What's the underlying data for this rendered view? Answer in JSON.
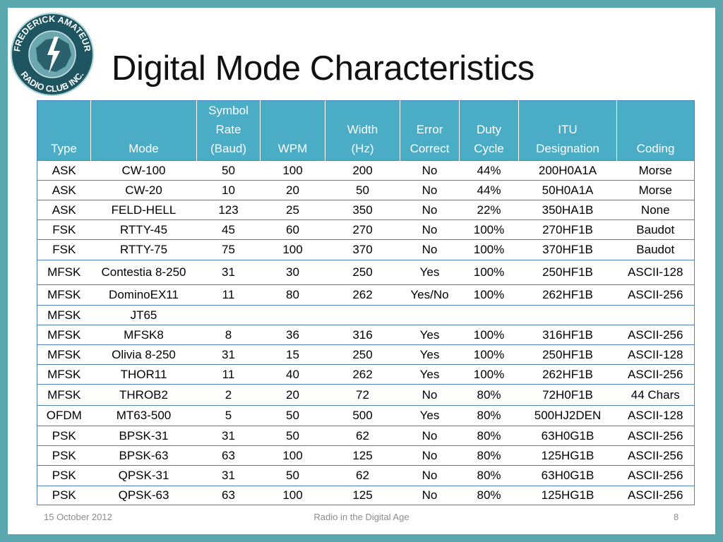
{
  "colors": {
    "frame": "#5ba7ae",
    "header_bg": "#4bacc6",
    "table_lines": "#4f81bd",
    "logo_dark": "#1f5560",
    "logo_light": "#6aa7ae"
  },
  "logo": {
    "top_text": "FREDERICK AMATEUR",
    "bottom_text": "RADIO CLUB INC."
  },
  "title": "Digital Mode Characteristics",
  "table": {
    "headers": [
      "Type",
      "Mode",
      "Symbol\nRate\n(Baud)",
      "WPM",
      "Width\n(Hz)",
      "Error\nCorrect",
      "Duty\nCycle",
      "ITU\nDesignation",
      "Coding"
    ],
    "rows": [
      [
        "ASK",
        "CW-100",
        "50",
        "100",
        "200",
        "No",
        "44%",
        "200H0A1A",
        "Morse"
      ],
      [
        "ASK",
        "CW-20",
        "10",
        "20",
        "50",
        "No",
        "44%",
        "50H0A1A",
        "Morse"
      ],
      [
        "ASK",
        "FELD-HELL",
        "123",
        "25",
        "350",
        "No",
        "22%",
        "350HA1B",
        "None"
      ],
      [
        "FSK",
        "RTTY-45",
        "45",
        "60",
        "270",
        "No",
        "100%",
        "270HF1B",
        "Baudot"
      ],
      [
        "FSK",
        "RTTY-75",
        "75",
        "100",
        "370",
        "No",
        "100%",
        "370HF1B",
        "Baudot"
      ],
      [
        "MFSK",
        "Contestia 8-250",
        "31",
        "30",
        "250",
        "Yes",
        "100%",
        "250HF1B",
        "ASCII-128"
      ],
      [
        "MFSK",
        "DominoEX11",
        "11",
        "80",
        "262",
        "Yes/No",
        "100%",
        "262HF1B",
        "ASCII-256"
      ],
      [
        "MFSK",
        "JT65",
        "",
        "",
        "",
        "",
        "",
        "",
        ""
      ],
      [
        "MFSK",
        "MFSK8",
        "8",
        "36",
        "316",
        "Yes",
        "100%",
        "316HF1B",
        "ASCII-256"
      ],
      [
        "MFSK",
        "Olivia 8-250",
        "31",
        "15",
        "250",
        "Yes",
        "100%",
        "250HF1B",
        "ASCII-128"
      ],
      [
        "MFSK",
        "THOR11",
        "11",
        "40",
        "262",
        "Yes",
        "100%",
        "262HF1B",
        "ASCII-256"
      ],
      [
        "MFSK",
        "THROB2",
        "2",
        "20",
        "72",
        "No",
        "80%",
        "72H0F1B",
        "44 Chars"
      ],
      [
        "OFDM",
        "MT63-500",
        "5",
        "50",
        "500",
        "Yes",
        "80%",
        "500HJ2DEN",
        "ASCII-128"
      ],
      [
        "PSK",
        "BPSK-31",
        "31",
        "50",
        "62",
        "No",
        "80%",
        "63H0G1B",
        "ASCII-256"
      ],
      [
        "PSK",
        "BPSK-63",
        "63",
        "100",
        "125",
        "No",
        "80%",
        "125HG1B",
        "ASCII-256"
      ],
      [
        "PSK",
        "QPSK-31",
        "31",
        "50",
        "62",
        "No",
        "80%",
        "63H0G1B",
        "ASCII-256"
      ],
      [
        "PSK",
        "QPSK-63",
        "63",
        "100",
        "125",
        "No",
        "80%",
        "125HG1B",
        "ASCII-256"
      ]
    ]
  },
  "footer": {
    "date": "15 October 2012",
    "title": "Radio in the Digital Age",
    "page": "8"
  }
}
